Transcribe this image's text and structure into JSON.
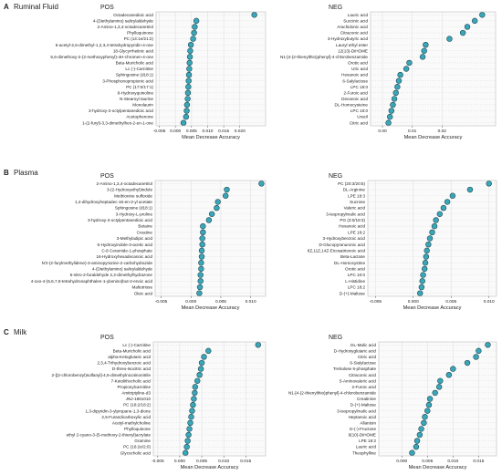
{
  "chart_data": [
    {
      "type": "scatter",
      "section_letter": "A",
      "section_title": "Ruminal Fluid",
      "title": "POS",
      "xlabel": "Mean Decrease Accuracy",
      "xlim": [
        -0.006,
        0.028
      ],
      "xticks": [
        -0.005,
        0.0,
        0.005,
        0.01,
        0.015,
        0.02
      ],
      "xtick_labels": [
        "-0.005",
        "0.000",
        "0.005",
        "0.010",
        "0.015",
        "0.020"
      ],
      "grid": true,
      "labels": [
        "Octadecanedioic acid",
        "4-(Diethylamino) salicylaldehyde",
        "2-Amino-1,3,4-octadecanetriol",
        "Phylloquinone",
        "PC (14:1e/21:2)",
        "5-acetyl-2,6-dimethyl-1,2,3,4-tetrahydropyridin-4-one",
        "18-Glycyrrhetinic acid",
        "5,6-dimethoxy-2-(2-methoxyphenyl)-4H-chromen-4-one",
        "Beta-Muricholic acid",
        "Lc (-)-Carnitine",
        "Sphingosine (d18:1)",
        "3-Phosphonopropionic acid",
        "PC (17:0/17:1)",
        "8-Hydroxyquinoline",
        "N-Stearoyl taurine",
        "Monolaurin",
        "3-hydroxy-2-octylpentanedioic acid",
        "Acetophenone",
        "1-(2-furyl)-3,3-dimethylhex-2-en-1-one"
      ],
      "values": [
        0.0245,
        0.0065,
        0.006,
        0.0058,
        0.0055,
        0.0048,
        0.0046,
        0.0045,
        0.0044,
        0.0043,
        0.0042,
        0.0041,
        0.004,
        0.0039,
        0.0038,
        0.0036,
        0.0035,
        0.0033,
        0.0025
      ]
    },
    {
      "type": "scatter",
      "title": "NEG",
      "xlabel": "Mean Decrease Accuracy",
      "xlim": [
        -0.004,
        0.038
      ],
      "xticks": [
        0.0,
        0.01,
        0.02
      ],
      "xtick_labels": [
        "0.00",
        "0.01",
        "0.02"
      ],
      "grid": true,
      "labels": [
        "Lauric acid",
        "Succinic acid",
        "Arachidonic acid",
        "Citraconic acid",
        "3-Hydroxybutyric acid",
        "Lauryl ethyl ester",
        "12(13)-DiHOME",
        "N1-[4-(2-thienylthio)phenyl]-4-chlorobenzamide",
        "Orotic acid",
        "Uric acid",
        "Hexanoic acid",
        "6-Salylactose",
        "LPC 18:0",
        "2-Furoic acid",
        "Decanoic acid",
        "DL-Homocysteine",
        "LPC 16:0",
        "Uracil",
        "Citric acid"
      ],
      "values": [
        0.0335,
        0.031,
        0.0285,
        0.027,
        0.0225,
        0.0145,
        0.014,
        0.0135,
        0.009,
        0.008,
        0.006,
        0.0055,
        0.005,
        0.0045,
        0.004,
        0.0035,
        0.003,
        0.0025,
        0.002
      ]
    },
    {
      "type": "scatter",
      "section_letter": "B",
      "section_title": "Plasma",
      "title": "POS",
      "xlabel": "Mean Decrease Accuracy",
      "xlim": [
        -0.006,
        0.0125
      ],
      "xticks": [
        -0.005,
        0.0,
        0.005,
        0.01
      ],
      "xtick_labels": [
        "-0.005",
        "0.000",
        "0.005",
        "0.010"
      ],
      "grid": true,
      "labels": [
        "2-Amino-1,3,4-octadecanetriol",
        "3-(2-Hydroxyethyl)indole",
        "Methionine sulfoxide",
        "1,4-dihydroxyheptadec-16-en-2-yl acetate",
        "Sphingosine (d18:1)",
        "3-Hydroxy-L-proline",
        "3-hydroxy-2-octylpentanedioic acid",
        "Betaine",
        "Creatine",
        "3-Methyladipic acid",
        "5-Hydroxyindole-3-acetic acid",
        "C-8 Ceramide-1-phosphate",
        "16-Hydroxyhexadecanoic acid",
        "N'2-(2-furylmethylidene)-3-aminopyrazine-2-carbohydrazide",
        "4-(Diethylamino) salicylaldehyde",
        "5-nitro-2-furaldehyde 2,2-dimethylhydrazone",
        "4-oxo-4-(5,6,7,8-tetrahydronaphthalen-1-ylamino)but-2-enoic acid",
        "Maltotriose",
        "Oleic acid"
      ],
      "values": [
        0.0118,
        0.006,
        0.0058,
        0.0045,
        0.0043,
        0.0035,
        0.003,
        0.002,
        0.002,
        0.0019,
        0.0019,
        0.0018,
        0.0018,
        0.0017,
        0.0017,
        0.0016,
        0.0016,
        0.0015,
        0.0014
      ]
    },
    {
      "type": "scatter",
      "title": "NEG",
      "xlabel": "Mean Decrease Accuracy",
      "xlim": [
        -0.006,
        0.011
      ],
      "xticks": [
        -0.005,
        0.0,
        0.005,
        0.01
      ],
      "xtick_labels": [
        "-0.005",
        "0.000",
        "0.005",
        "0.010"
      ],
      "grid": true,
      "labels": [
        "PC (20:3/20:5)",
        "DL-Arginine",
        "LPE 18:3",
        "Sucrose",
        "Valeric acid",
        "3-isopropylmalic acid",
        "PG (3:0/18:3)",
        "Hexanoic acid",
        "LPE 18:2",
        "3-Hydroxybenzoic acid",
        "D-Glucopyranuronic acid",
        "8Z,11Z,14Z-Eicosatrienoic acid",
        "Beta-Lactose",
        "DL-Homocystine",
        "Orotic acid",
        "LPC 10:0",
        "L-Histidine",
        "LPC 18:2",
        "D-(+)-Maltose"
      ],
      "values": [
        0.01,
        0.0075,
        0.0052,
        0.0045,
        0.004,
        0.0035,
        0.003,
        0.0028,
        0.0025,
        0.0022,
        0.002,
        0.0018,
        0.0017,
        0.0016,
        0.0015,
        0.0013,
        0.0012,
        0.0011,
        0.0009
      ]
    },
    {
      "type": "scatter",
      "section_letter": "C",
      "section_title": "Milk",
      "title": "POS",
      "xlabel": "Mean Decrease Accuracy",
      "xlim": [
        -0.006,
        0.0195
      ],
      "xticks": [
        -0.005,
        0.0,
        0.005,
        0.01,
        0.015
      ],
      "xtick_labels": [
        "-0.005",
        "0.000",
        "0.005",
        "0.010",
        "0.015"
      ],
      "grid": true,
      "labels": [
        "Lc (-)-Carnitine",
        "Beta-Muricholic acid",
        "alpha-Ketoglutaric acid",
        "2,3,4-Trihydroxybenzoic acid",
        "D-threo-Isocitric acid",
        "2-[(2-chlorobenzyl)sulfanyl]-4,6-dimethylnicotinonitrile",
        "7-Ketolithocholic acid",
        "Propionylcarnitine",
        "Amitriptyline-d3",
        "JNJ-1861010",
        "PC (18:2/18:2)",
        "1,3-dipyridin-3-ylpropane-1,3-dione",
        "2,5-Furandicarboxylic acid",
        "Acetyl-methylcholine",
        "Phylloquinone",
        "ethyl 2-cyano-3-(5-methoxy-2-thienyl)acrylate",
        "Gramine",
        "PC (16:2e/2:0)",
        "Glycocholic acid"
      ],
      "values": [
        0.0178,
        0.0065,
        0.0055,
        0.005,
        0.0048,
        0.0045,
        0.004,
        0.0035,
        0.0034,
        0.0032,
        0.003,
        0.0028,
        0.0026,
        0.0024,
        0.0022,
        0.002,
        0.0018,
        0.0016,
        0.0013
      ]
    },
    {
      "type": "scatter",
      "title": "NEG",
      "xlabel": "Mean Decrease Accuracy",
      "xlim": [
        -0.0045,
        0.0185
      ],
      "xticks": [
        0.0,
        0.005,
        0.01,
        0.015
      ],
      "xtick_labels": [
        "0.000",
        "0.005",
        "0.010",
        "0.015"
      ],
      "grid": true,
      "labels": [
        "DL-Malic acid",
        "D-Hydroxyglutaric acid",
        "Citric acid",
        "6-Sialylactose",
        "Trehalose 6-phosphate",
        "Citraconic acid",
        "5-Aminovaleric acid",
        "2-Furoic acid",
        "N1-[4-(2-thienylthio)phenyl]-4-chlorobenzamide",
        "Creatinine",
        "D-(+)-Maltose",
        "3-isopropylmalic acid",
        "Heptanoic acid",
        "Allantoin",
        "D-(-)-Fructose",
        "9(10)-DiHOME",
        "LPE 18:2",
        "Lauric acid",
        "Theophylline"
      ],
      "values": [
        0.0168,
        0.015,
        0.0145,
        0.0128,
        0.01,
        0.0092,
        0.0075,
        0.0073,
        0.0065,
        0.0055,
        0.0053,
        0.005,
        0.0045,
        0.0043,
        0.0038,
        0.0035,
        0.003,
        0.0028,
        0.002
      ]
    }
  ],
  "colors": {
    "point_fill": "#3aa7b8",
    "point_stroke": "#1c4652",
    "grid": "#e1e1e1",
    "panel_bg": "#fafafa",
    "text": "#222222"
  }
}
